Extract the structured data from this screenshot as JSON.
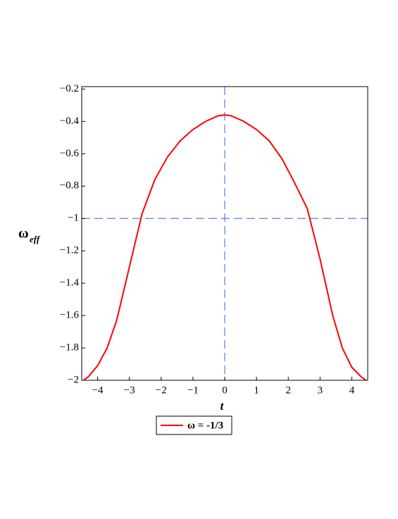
{
  "chart_data": {
    "type": "line",
    "xlabel": "t",
    "ylabel": "ω",
    "ylabel_sub": "eff",
    "x": [
      -4.45,
      -4.3,
      -4,
      -3.7,
      -3.4,
      -3,
      -2.6,
      -2.2,
      -1.8,
      -1.4,
      -1,
      -0.6,
      -0.2,
      0,
      0.2,
      0.6,
      1,
      1.4,
      1.8,
      2.2,
      2.6,
      3,
      3.4,
      3.7,
      4,
      4.3,
      4.45
    ],
    "series": [
      {
        "name": "ω = -1/3",
        "color": "#ff0000",
        "values": [
          -2.0,
          -1.98,
          -1.91,
          -1.8,
          -1.63,
          -1.3,
          -0.97,
          -0.76,
          -0.62,
          -0.52,
          -0.45,
          -0.4,
          -0.365,
          -0.36,
          -0.365,
          -0.4,
          -0.45,
          -0.52,
          -0.63,
          -0.78,
          -0.94,
          -1.25,
          -1.6,
          -1.8,
          -1.92,
          -1.98,
          -2.0
        ]
      }
    ],
    "xlim": [
      -4.5,
      4.5
    ],
    "ylim": [
      -2,
      -0.185
    ],
    "xticks": [
      {
        "value": -4,
        "label": "−4"
      },
      {
        "value": -3,
        "label": "−3"
      },
      {
        "value": -2,
        "label": "−2"
      },
      {
        "value": -1,
        "label": "−1"
      },
      0,
      1,
      2,
      3,
      4
    ],
    "yticks": [
      {
        "value": -0.2,
        "label": "−0.2"
      },
      {
        "value": -0.4,
        "label": "−0.4"
      },
      {
        "value": -0.6,
        "label": "−0.6"
      },
      {
        "value": -0.8,
        "label": "−0.8"
      },
      {
        "value": -1,
        "label": "−1"
      },
      {
        "value": -1.2,
        "label": "−1.2"
      },
      {
        "value": -1.4,
        "label": "−1.4"
      },
      {
        "value": -1.6,
        "label": "−1.6"
      },
      {
        "value": -1.8,
        "label": "−1.8"
      },
      {
        "value": -2,
        "label": "−2"
      }
    ],
    "hline": -1,
    "vline": 0,
    "ref_color": "#4f81f0"
  }
}
